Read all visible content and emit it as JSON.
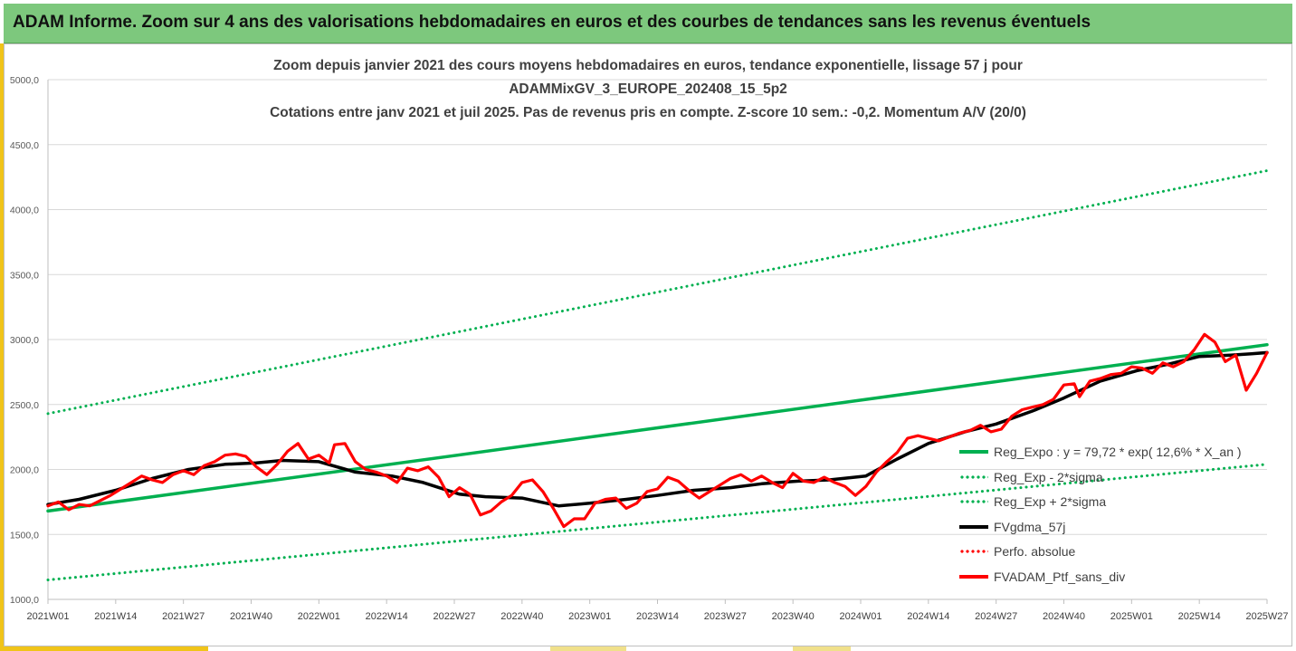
{
  "banner": {
    "title": "ADAM Informe. Zoom sur 4 ans des valorisations hebdomadaires en euros et des courbes de tendances sans les revenus éventuels"
  },
  "chart_data": {
    "type": "line",
    "title_lines": [
      "Zoom depuis janvier 2021 des cours moyens hebdomadaires  en euros, tendance exponentielle, lissage 57 j pour",
      "ADAMMixGV_3_EUROPE_202408_15_5p2",
      "Cotations entre janv 2021 et juil 2025. Pas de revenus pris en compte. Z-score 10 sem.: -0,2. Momentum A/V (20/0)"
    ],
    "ylim": [
      1000,
      5000
    ],
    "y_ticks": [
      "1000,0",
      "1500,0",
      "2000,0",
      "2500,0",
      "3000,0",
      "3500,0",
      "4000,0",
      "4500,0",
      "5000,0"
    ],
    "x_ticks": [
      "2021W01",
      "2021W14",
      "2021W27",
      "2021W40",
      "2022W01",
      "2022W14",
      "2022W27",
      "2022W40",
      "2023W01",
      "2023W14",
      "2023W27",
      "2023W40",
      "2024W01",
      "2024W14",
      "2024W27",
      "2024W40",
      "2025W01",
      "2025W14",
      "2025W27"
    ],
    "legend_position": "bottom-right",
    "grid": "horizontal",
    "series": [
      {
        "name": "Reg_Expo : y = 79,72 * exp( 12,6% *  X_an )",
        "color": "#00b050",
        "style": "solid",
        "points": [
          [
            0,
            1680
          ],
          [
            234,
            2960
          ]
        ]
      },
      {
        "name": "Reg_Exp - 2*sigma",
        "color": "#00b050",
        "style": "dotted",
        "points": [
          [
            0,
            1150
          ],
          [
            234,
            2040
          ]
        ]
      },
      {
        "name": "Reg_Exp + 2*sigma",
        "color": "#00b050",
        "style": "dotted",
        "points": [
          [
            0,
            2430
          ],
          [
            234,
            4300
          ]
        ]
      },
      {
        "name": "FVgdma_57j",
        "color": "#000000",
        "style": "solid",
        "points": [
          [
            0,
            1730
          ],
          [
            6,
            1770
          ],
          [
            13,
            1840
          ],
          [
            20,
            1930
          ],
          [
            27,
            2000
          ],
          [
            34,
            2040
          ],
          [
            40,
            2050
          ],
          [
            45,
            2070
          ],
          [
            52,
            2060
          ],
          [
            59,
            1980
          ],
          [
            66,
            1950
          ],
          [
            72,
            1900
          ],
          [
            79,
            1810
          ],
          [
            84,
            1790
          ],
          [
            91,
            1780
          ],
          [
            98,
            1720
          ],
          [
            104,
            1740
          ],
          [
            111,
            1770
          ],
          [
            117,
            1800
          ],
          [
            124,
            1840
          ],
          [
            131,
            1860
          ],
          [
            137,
            1890
          ],
          [
            144,
            1910
          ],
          [
            150,
            1920
          ],
          [
            157,
            1950
          ],
          [
            163,
            2080
          ],
          [
            169,
            2200
          ],
          [
            176,
            2290
          ],
          [
            182,
            2350
          ],
          [
            189,
            2450
          ],
          [
            195,
            2550
          ],
          [
            202,
            2680
          ],
          [
            209,
            2760
          ],
          [
            215,
            2810
          ],
          [
            221,
            2870
          ],
          [
            227,
            2880
          ],
          [
            231,
            2890
          ],
          [
            234,
            2900
          ]
        ]
      },
      {
        "name": "Perfo. absolue",
        "color": "#ff0000",
        "style": "dotted",
        "points": []
      },
      {
        "name": "FVADAM_Ptf_sans_div",
        "color": "#ff0000",
        "style": "solid",
        "points": [
          [
            0,
            1720
          ],
          [
            2,
            1750
          ],
          [
            4,
            1690
          ],
          [
            6,
            1730
          ],
          [
            8,
            1720
          ],
          [
            10,
            1760
          ],
          [
            12,
            1800
          ],
          [
            14,
            1850
          ],
          [
            16,
            1900
          ],
          [
            18,
            1950
          ],
          [
            20,
            1920
          ],
          [
            22,
            1900
          ],
          [
            24,
            1960
          ],
          [
            26,
            1990
          ],
          [
            28,
            1960
          ],
          [
            30,
            2030
          ],
          [
            32,
            2060
          ],
          [
            34,
            2110
          ],
          [
            36,
            2120
          ],
          [
            38,
            2100
          ],
          [
            40,
            2020
          ],
          [
            42,
            1960
          ],
          [
            44,
            2040
          ],
          [
            46,
            2140
          ],
          [
            48,
            2200
          ],
          [
            50,
            2080
          ],
          [
            52,
            2110
          ],
          [
            54,
            2050
          ],
          [
            55,
            2190
          ],
          [
            57,
            2200
          ],
          [
            59,
            2060
          ],
          [
            61,
            2000
          ],
          [
            63,
            1980
          ],
          [
            65,
            1950
          ],
          [
            67,
            1900
          ],
          [
            69,
            2010
          ],
          [
            71,
            1990
          ],
          [
            73,
            2020
          ],
          [
            75,
            1940
          ],
          [
            77,
            1790
          ],
          [
            79,
            1860
          ],
          [
            81,
            1810
          ],
          [
            83,
            1650
          ],
          [
            85,
            1680
          ],
          [
            87,
            1750
          ],
          [
            89,
            1800
          ],
          [
            91,
            1900
          ],
          [
            93,
            1920
          ],
          [
            95,
            1830
          ],
          [
            97,
            1700
          ],
          [
            99,
            1560
          ],
          [
            101,
            1620
          ],
          [
            103,
            1620
          ],
          [
            105,
            1740
          ],
          [
            107,
            1770
          ],
          [
            109,
            1780
          ],
          [
            111,
            1700
          ],
          [
            113,
            1740
          ],
          [
            115,
            1830
          ],
          [
            117,
            1850
          ],
          [
            119,
            1940
          ],
          [
            121,
            1910
          ],
          [
            123,
            1840
          ],
          [
            125,
            1780
          ],
          [
            127,
            1830
          ],
          [
            129,
            1880
          ],
          [
            131,
            1930
          ],
          [
            133,
            1960
          ],
          [
            135,
            1910
          ],
          [
            137,
            1950
          ],
          [
            139,
            1900
          ],
          [
            141,
            1860
          ],
          [
            143,
            1970
          ],
          [
            145,
            1910
          ],
          [
            147,
            1900
          ],
          [
            149,
            1940
          ],
          [
            151,
            1900
          ],
          [
            153,
            1870
          ],
          [
            155,
            1800
          ],
          [
            157,
            1870
          ],
          [
            159,
            1980
          ],
          [
            161,
            2060
          ],
          [
            163,
            2130
          ],
          [
            165,
            2240
          ],
          [
            167,
            2260
          ],
          [
            169,
            2240
          ],
          [
            171,
            2220
          ],
          [
            173,
            2250
          ],
          [
            175,
            2280
          ],
          [
            177,
            2300
          ],
          [
            179,
            2340
          ],
          [
            181,
            2290
          ],
          [
            183,
            2310
          ],
          [
            185,
            2410
          ],
          [
            187,
            2460
          ],
          [
            189,
            2480
          ],
          [
            191,
            2500
          ],
          [
            193,
            2540
          ],
          [
            195,
            2650
          ],
          [
            197,
            2660
          ],
          [
            198,
            2560
          ],
          [
            200,
            2680
          ],
          [
            202,
            2700
          ],
          [
            204,
            2730
          ],
          [
            206,
            2740
          ],
          [
            208,
            2790
          ],
          [
            210,
            2780
          ],
          [
            212,
            2740
          ],
          [
            214,
            2820
          ],
          [
            216,
            2790
          ],
          [
            218,
            2830
          ],
          [
            220,
            2920
          ],
          [
            222,
            3040
          ],
          [
            224,
            2980
          ],
          [
            226,
            2830
          ],
          [
            228,
            2880
          ],
          [
            230,
            2610
          ],
          [
            232,
            2740
          ],
          [
            234,
            2900
          ]
        ]
      }
    ]
  }
}
